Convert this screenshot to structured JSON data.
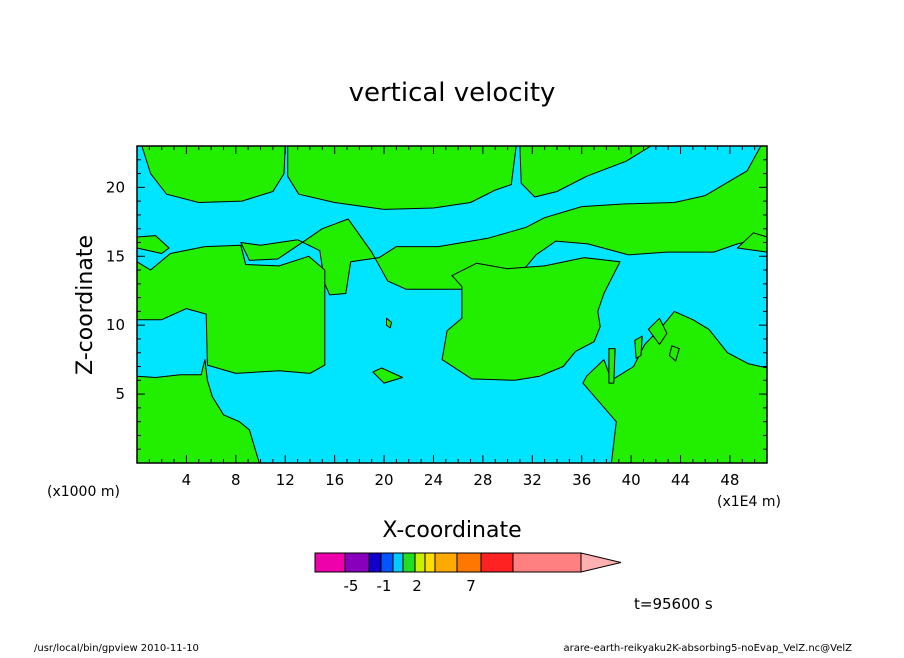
{
  "chart_data": {
    "type": "contour",
    "title": "vertical velocity",
    "xlabel": "X-coordinate",
    "ylabel": "Z-coordinate",
    "x_unit_left": "(x1000 m)",
    "x_unit_right": "(x1E4 m)",
    "xlim": [
      0,
      51
    ],
    "ylim": [
      0,
      23
    ],
    "x_ticks": [
      4,
      8,
      12,
      16,
      20,
      24,
      28,
      32,
      36,
      40,
      44,
      48
    ],
    "y_ticks": [
      5,
      10,
      15,
      20
    ],
    "colors": {
      "negative_region": "#00e5ff",
      "positive_region": "#22ee00",
      "contour_line": "#000000"
    },
    "positive_regions": [
      [
        [
          0,
          23
        ],
        [
          0.4,
          23
        ],
        [
          1.1,
          21
        ],
        [
          2.4,
          19.5
        ],
        [
          5,
          18.9
        ],
        [
          8.5,
          19
        ],
        [
          11,
          19.7
        ],
        [
          11.9,
          21
        ],
        [
          12,
          23
        ]
      ],
      [
        [
          12.2,
          23
        ],
        [
          12.2,
          20.8
        ],
        [
          13.1,
          19.5
        ],
        [
          16,
          18.9
        ],
        [
          20,
          18.4
        ],
        [
          24,
          18.5
        ],
        [
          27,
          18.9
        ],
        [
          29,
          19.8
        ],
        [
          30.3,
          20.2
        ],
        [
          30.7,
          23
        ]
      ],
      [
        [
          31,
          23
        ],
        [
          31.1,
          20.3
        ],
        [
          32.2,
          19.3
        ],
        [
          34,
          19.7
        ],
        [
          36.4,
          20.8
        ],
        [
          39.6,
          21.9
        ],
        [
          41.6,
          23
        ]
      ],
      [
        [
          50.5,
          23
        ],
        [
          49.4,
          21.2
        ],
        [
          46,
          19.4
        ],
        [
          43.5,
          18.9
        ],
        [
          39.5,
          18.8
        ],
        [
          36,
          18.6
        ],
        [
          33,
          17.8
        ],
        [
          31.5,
          17.1
        ],
        [
          28.4,
          16.3
        ],
        [
          24.4,
          15.7
        ],
        [
          21,
          15.7
        ],
        [
          19.6,
          14.9
        ],
        [
          17.3,
          14.6
        ],
        [
          16.9,
          12.3
        ],
        [
          15.6,
          12.2
        ],
        [
          15.2,
          13
        ],
        [
          14.8,
          15.4
        ],
        [
          13,
          16.2
        ],
        [
          10,
          15.8
        ],
        [
          8.4,
          16
        ],
        [
          9.1,
          14.7
        ],
        [
          11.4,
          14.8
        ],
        [
          13.2,
          15.9
        ],
        [
          15,
          17
        ],
        [
          17.1,
          17.7
        ],
        [
          19,
          15.3
        ],
        [
          20.3,
          13.2
        ],
        [
          21.8,
          12.6
        ],
        [
          27,
          12.6
        ],
        [
          30.8,
          13.5
        ],
        [
          32.3,
          15.1
        ],
        [
          33.9,
          16.1
        ],
        [
          36.5,
          15.9
        ],
        [
          39.8,
          15.1
        ],
        [
          42.9,
          15.3
        ],
        [
          46.7,
          15.3
        ],
        [
          48.6,
          15.9
        ],
        [
          51,
          16.4
        ],
        [
          51,
          23
        ]
      ],
      [
        [
          0,
          16.4
        ],
        [
          1.5,
          16.5
        ],
        [
          2.6,
          15.6
        ],
        [
          2,
          15.2
        ],
        [
          0,
          15.6
        ]
      ],
      [
        [
          49.9,
          16.7
        ],
        [
          51,
          16.4
        ],
        [
          51,
          15.3
        ],
        [
          48.6,
          15.6
        ]
      ],
      [
        [
          0,
          10.4
        ],
        [
          0,
          14.6
        ],
        [
          1.1,
          14
        ],
        [
          2.7,
          15.2
        ],
        [
          5.5,
          15.7
        ],
        [
          8.4,
          15.8
        ],
        [
          8.8,
          14.4
        ],
        [
          11.5,
          14.3
        ],
        [
          13.9,
          15
        ],
        [
          15.2,
          14
        ],
        [
          15.2,
          7.1
        ],
        [
          14,
          6.5
        ],
        [
          11.5,
          6.7
        ],
        [
          8,
          6.5
        ],
        [
          5.7,
          7.1
        ],
        [
          5.6,
          10.8
        ],
        [
          4,
          11.2
        ],
        [
          2,
          10.4
        ]
      ],
      [
        [
          25.5,
          13.6
        ],
        [
          26.3,
          12.8
        ],
        [
          26.3,
          10.5
        ],
        [
          25.1,
          9.6
        ],
        [
          24.7,
          7.5
        ],
        [
          27.1,
          6.1
        ],
        [
          30.6,
          6
        ],
        [
          32.6,
          6.3
        ],
        [
          34.5,
          7
        ],
        [
          35.5,
          8.1
        ],
        [
          37,
          8.8
        ],
        [
          37.5,
          9.9
        ],
        [
          37.3,
          11
        ],
        [
          37.8,
          12.3
        ],
        [
          39.1,
          14.6
        ],
        [
          36.2,
          14.9
        ],
        [
          33,
          14.3
        ],
        [
          30,
          14.1
        ],
        [
          27.5,
          14.5
        ]
      ],
      [
        [
          36.4,
          6.3
        ],
        [
          37.8,
          7.5
        ],
        [
          38.4,
          6
        ],
        [
          40.2,
          7
        ],
        [
          41.1,
          8.6
        ],
        [
          42.4,
          9.8
        ],
        [
          43.5,
          11
        ],
        [
          45,
          10.4
        ],
        [
          46.3,
          9.7
        ],
        [
          47.8,
          8
        ],
        [
          49.5,
          7.2
        ],
        [
          51,
          6.9
        ],
        [
          51,
          0
        ],
        [
          38.4,
          0
        ],
        [
          38.8,
          3
        ],
        [
          36.1,
          5.8
        ]
      ],
      [
        [
          0,
          6.3
        ],
        [
          1.5,
          6.2
        ],
        [
          3.5,
          6.4
        ],
        [
          5.2,
          6.4
        ],
        [
          5.5,
          7.5
        ],
        [
          5.7,
          6
        ],
        [
          6.1,
          4.8
        ],
        [
          7,
          3.5
        ],
        [
          8.3,
          3
        ],
        [
          9.1,
          2.4
        ],
        [
          9.9,
          0
        ],
        [
          0,
          0
        ]
      ],
      [
        [
          19.1,
          6.6
        ],
        [
          19.8,
          6.9
        ],
        [
          21.5,
          6.2
        ],
        [
          20,
          5.8
        ]
      ],
      [
        [
          20.2,
          10.5
        ],
        [
          20.6,
          10.2
        ],
        [
          20.5,
          9.8
        ],
        [
          20.2,
          10
        ]
      ],
      [
        [
          38.2,
          8.3
        ],
        [
          38.7,
          8.3
        ],
        [
          38.6,
          5.8
        ],
        [
          38.2,
          5.8
        ]
      ],
      [
        [
          40.3,
          8.9
        ],
        [
          40.9,
          9.2
        ],
        [
          40.8,
          7.8
        ],
        [
          40.4,
          7.6
        ]
      ],
      [
        [
          41.4,
          9.7
        ],
        [
          42.3,
          10.5
        ],
        [
          42.9,
          9.4
        ],
        [
          42.3,
          8.6
        ]
      ],
      [
        [
          43.3,
          8.5
        ],
        [
          43.9,
          8.3
        ],
        [
          43.6,
          7.4
        ],
        [
          43.1,
          7.8
        ]
      ]
    ],
    "colorbar": {
      "colors": [
        "#ee00aa",
        "#8800bb",
        "#1100cc",
        "#0055ff",
        "#00ccff",
        "#22dd22",
        "#ccee00",
        "#ffdd00",
        "#ffaa00",
        "#ff7700",
        "#ff2222",
        "#ff8080",
        "#ffb0b0"
      ],
      "tick_labels": [
        "-5",
        "-1",
        "2",
        "7"
      ]
    },
    "time_label": "t=95600 s",
    "footer_left": "/usr/local/bin/gpview  2010-11-10",
    "footer_right": "arare-earth-reikyaku2K-absorbing5-noEvap_VelZ.nc@VelZ"
  }
}
